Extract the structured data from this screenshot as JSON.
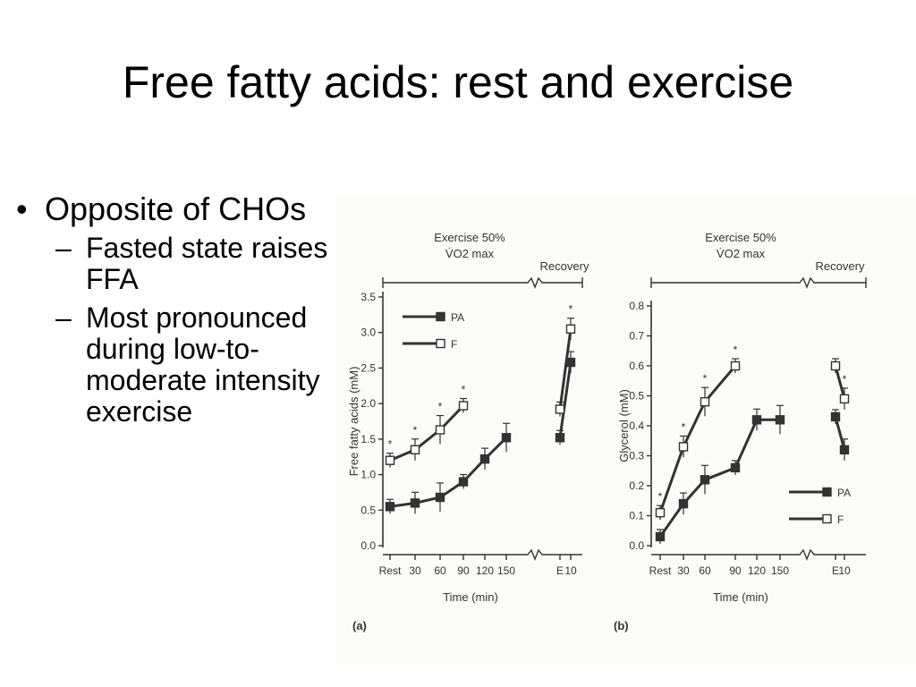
{
  "slide": {
    "title": "Free fatty acids: rest and exercise",
    "bullets": [
      {
        "text": "Opposite of CHOs",
        "sub": [
          "Fasted state raises FFA",
          "Most pronounced during low-to-moderate intensity exercise"
        ]
      }
    ]
  },
  "colors": {
    "line": "#333333",
    "background": "#ffffff",
    "text": "#000000"
  },
  "chart_data": [
    {
      "panel_label": "(a)",
      "type": "line",
      "header_left": "Exercise 50%",
      "header_left_sub": "V̇O2 max",
      "header_right": "Recovery",
      "xlabel": "Time (min)",
      "ylabel": "Free fatty acids (mM)",
      "ylim": [
        0,
        3.5
      ],
      "yticks": [
        "0.0",
        "0.5",
        "1.0",
        "1.5",
        "2.0",
        "2.5",
        "3.0",
        "3.5"
      ],
      "x_tick_labels": [
        "Rest",
        "30",
        "60",
        "90",
        "120",
        "150",
        "E",
        "10"
      ],
      "series": [
        {
          "name": "PA",
          "marker": "filled-square",
          "values": [
            0.55,
            0.6,
            0.68,
            0.9,
            1.22,
            1.52,
            1.52,
            2.58
          ]
        },
        {
          "name": "F",
          "marker": "open-square",
          "values": [
            1.2,
            1.35,
            1.63,
            1.97,
            null,
            null,
            1.92,
            3.05
          ]
        }
      ],
      "significance_markers": "*"
    },
    {
      "panel_label": "(b)",
      "type": "line",
      "header_left": "Exercise 50%",
      "header_left_sub": "V̇O2 max",
      "header_right": "Recovery",
      "xlabel": "Time (min)",
      "ylabel": "Glycerol (mM)",
      "ylim": [
        0,
        0.8
      ],
      "yticks": [
        "0.0",
        "0.1",
        "0.2",
        "0.3",
        "0.4",
        "0.5",
        "0.6",
        "0.7",
        "0.8"
      ],
      "x_tick_labels": [
        "Rest",
        "30",
        "60",
        "90",
        "120",
        "150",
        "E",
        "10"
      ],
      "series": [
        {
          "name": "PA",
          "marker": "filled-square",
          "values": [
            0.03,
            0.14,
            0.22,
            0.26,
            0.42,
            0.42,
            0.43,
            0.32
          ]
        },
        {
          "name": "F",
          "marker": "open-square",
          "values": [
            0.11,
            0.33,
            0.48,
            0.6,
            null,
            null,
            0.6,
            0.49
          ]
        }
      ],
      "significance_markers": "*"
    }
  ]
}
